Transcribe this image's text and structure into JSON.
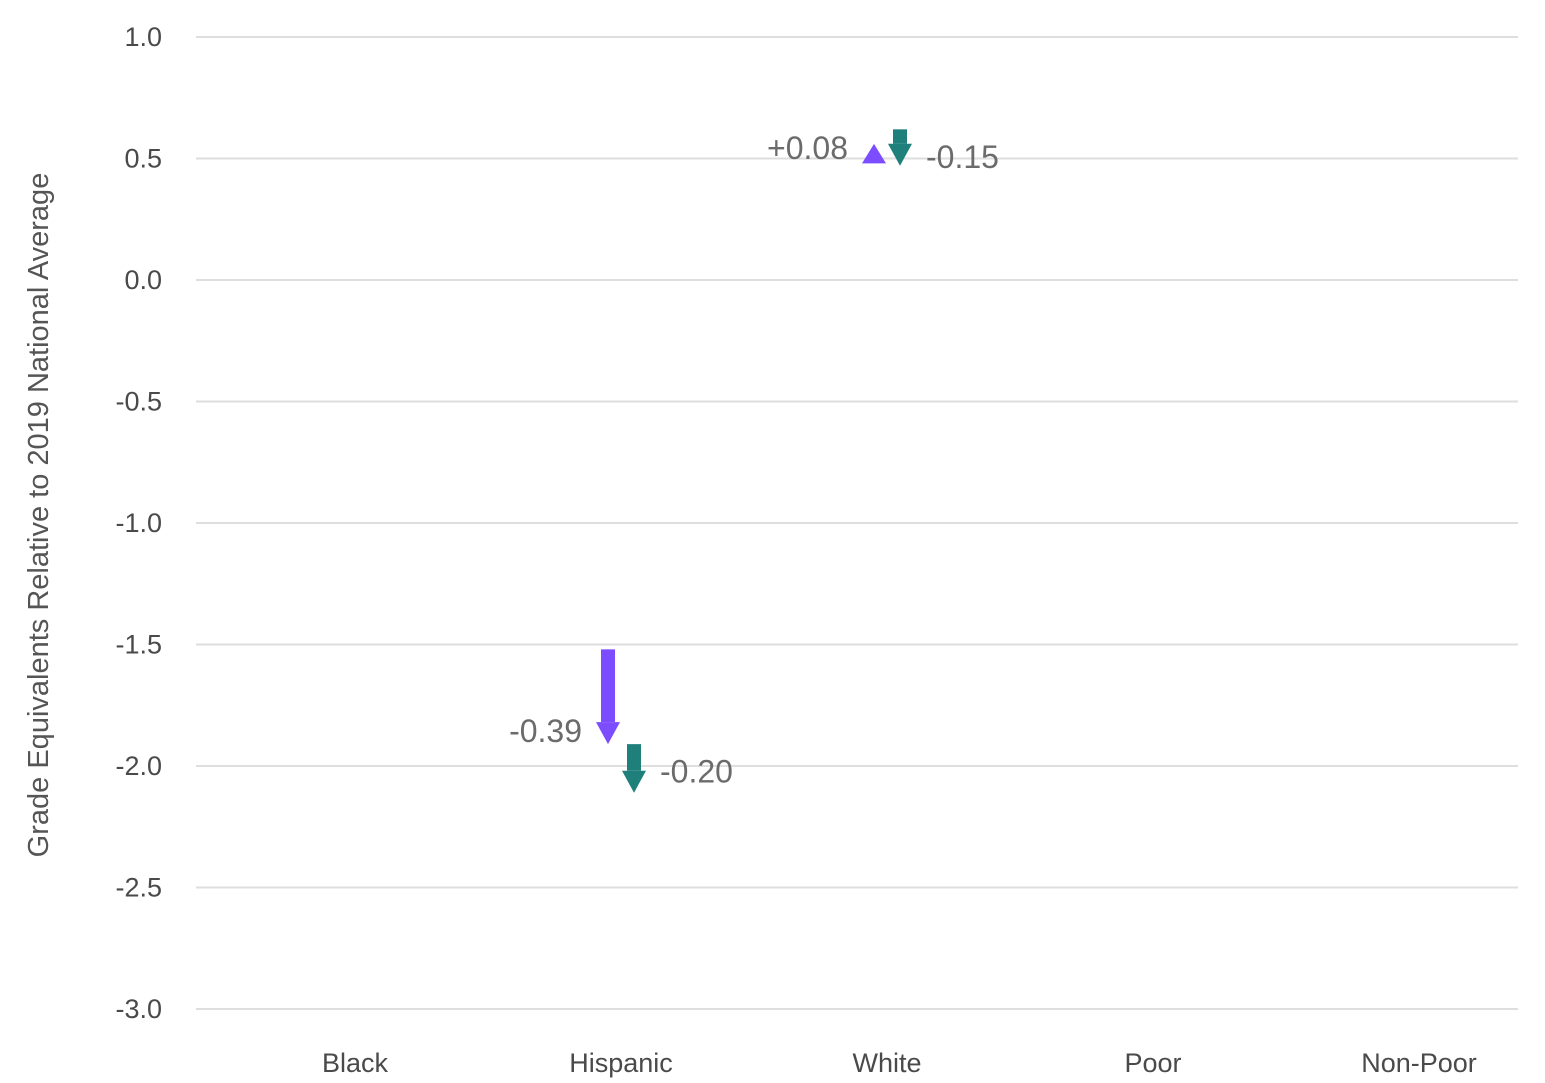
{
  "chart_data": {
    "type": "arrow",
    "title": "",
    "ylabel": "Grade Equivalents Relative to 2019 National Average",
    "xlabel": "",
    "ylim": [
      -3.0,
      1.0
    ],
    "yticks": [
      1.0,
      0.5,
      0.0,
      -0.5,
      -1.0,
      -1.5,
      -2.0,
      -2.5,
      -3.0
    ],
    "ytick_labels": [
      "1.0",
      "0.5",
      "0.0",
      "-0.5",
      "-1.0",
      "-1.5",
      "-2.0",
      "-2.5",
      "-3.0"
    ],
    "categories": [
      "Black",
      "Hispanic",
      "White",
      "Poor",
      "Non-Poor"
    ],
    "grid": true,
    "colors": {
      "series1": "#7c4dff",
      "series2": "#1f7f7a"
    },
    "arrows": [
      {
        "category": "Hispanic",
        "series": "series1",
        "from": -1.52,
        "to": -1.91,
        "label": "-0.39"
      },
      {
        "category": "Hispanic",
        "series": "series2",
        "from": -1.91,
        "to": -2.11,
        "label": "-0.20"
      },
      {
        "category": "White",
        "series": "series1",
        "from": 0.48,
        "to": 0.56,
        "label": "+0.08"
      },
      {
        "category": "White",
        "series": "series2",
        "from": 0.62,
        "to": 0.47,
        "label": "-0.15"
      }
    ]
  }
}
